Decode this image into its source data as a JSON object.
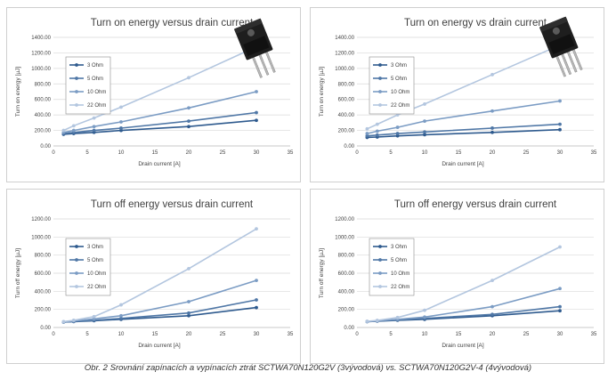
{
  "caption": "Obr. 2  Srovnání zapínacích a vypínacích ztrát SCTWA70N120G2V (3vývodová) vs. SCTWA70N120G2V-4 (4vývodová)",
  "colors": {
    "series": [
      "#2e5a8e",
      "#4f77a6",
      "#7b9cc4",
      "#b3c6df"
    ],
    "grid": "#d9d9d9",
    "frame": "#cfcfcf"
  },
  "icons": [
    "transistor-3pin-icon",
    "transistor-4pin-icon"
  ],
  "chart_data": [
    {
      "type": "line",
      "title": "Turn on energy versus drain current",
      "xlabel": "Drain current [A]",
      "ylabel": "Turn on energy [µJ]",
      "xlim": [
        0,
        35
      ],
      "ylim": [
        0,
        1400
      ],
      "x_ticks": [
        "0",
        "5",
        "10",
        "15",
        "20",
        "25",
        "30",
        "35"
      ],
      "y_ticks": [
        "0.00",
        "200.00",
        "400.00",
        "600.00",
        "800.00",
        "1000.00",
        "1200.00",
        "1400.00"
      ],
      "grid": "horizontal",
      "legend": "upper-left",
      "x": [
        1.5,
        3,
        6,
        10,
        20,
        30
      ],
      "series": [
        {
          "name": "3 Ohm",
          "values": [
            150,
            160,
            175,
            200,
            250,
            330
          ]
        },
        {
          "name": "5 Ohm",
          "values": [
            160,
            175,
            200,
            230,
            320,
            430
          ]
        },
        {
          "name": "10 Ohm",
          "values": [
            175,
            200,
            250,
            310,
            490,
            700
          ]
        },
        {
          "name": "22 Ohm",
          "values": [
            200,
            260,
            360,
            500,
            880,
            1280
          ]
        }
      ]
    },
    {
      "type": "line",
      "title": "Turn on energy vs drain current",
      "xlabel": "Drain current [A]",
      "ylabel": "Turn on energy [µJ]",
      "xlim": [
        0,
        35
      ],
      "ylim": [
        0,
        1400
      ],
      "x_ticks": [
        "0",
        "5",
        "10",
        "15",
        "20",
        "25",
        "30",
        "35"
      ],
      "y_ticks": [
        "0.00",
        "200.00",
        "400.00",
        "600.00",
        "800.00",
        "1000.00",
        "1200.00",
        "1400.00"
      ],
      "grid": "horizontal",
      "legend": "upper-left",
      "x": [
        1.5,
        3,
        6,
        10,
        20,
        30
      ],
      "series": [
        {
          "name": "3 Ohm",
          "values": [
            110,
            115,
            130,
            145,
            175,
            210
          ]
        },
        {
          "name": "5 Ohm",
          "values": [
            130,
            140,
            160,
            180,
            230,
            280
          ]
        },
        {
          "name": "10 Ohm",
          "values": [
            160,
            190,
            240,
            320,
            450,
            580
          ]
        },
        {
          "name": "22 Ohm",
          "values": [
            220,
            280,
            400,
            540,
            920,
            1300
          ]
        }
      ]
    },
    {
      "type": "line",
      "title": "Turn off energy versus drain current",
      "xlabel": "Drain current [A]",
      "ylabel": "Turn off energy [µJ]",
      "xlim": [
        0,
        35
      ],
      "ylim": [
        0,
        1200
      ],
      "x_ticks": [
        "0",
        "5",
        "10",
        "15",
        "20",
        "25",
        "30",
        "35"
      ],
      "y_ticks": [
        "0.00",
        "200.00",
        "400.00",
        "600.00",
        "800.00",
        "1000.00",
        "1200.00"
      ],
      "grid": "horizontal",
      "legend": "upper-left",
      "x": [
        1.5,
        3,
        6,
        10,
        20,
        30
      ],
      "series": [
        {
          "name": "3 Ohm",
          "values": [
            60,
            65,
            75,
            90,
            130,
            220
          ]
        },
        {
          "name": "5 Ohm",
          "values": [
            60,
            68,
            80,
            100,
            160,
            305
          ]
        },
        {
          "name": "10 Ohm",
          "values": [
            62,
            72,
            95,
            130,
            285,
            520
          ]
        },
        {
          "name": "22 Ohm",
          "values": [
            65,
            80,
            120,
            250,
            650,
            1090
          ]
        }
      ]
    },
    {
      "type": "line",
      "title": "Turn off energy versus drain current",
      "xlabel": "Drain current [A]",
      "ylabel": "Turn off energy [µJ]",
      "xlim": [
        0,
        35
      ],
      "ylim": [
        0,
        1200
      ],
      "x_ticks": [
        "0",
        "5",
        "10",
        "15",
        "20",
        "25",
        "30",
        "35"
      ],
      "y_ticks": [
        "0.00",
        "200.00",
        "400.00",
        "600.00",
        "800.00",
        "1000.00",
        "1200.00"
      ],
      "grid": "horizontal",
      "legend": "upper-left",
      "x": [
        1.5,
        3,
        6,
        10,
        20,
        30
      ],
      "series": [
        {
          "name": "3 Ohm",
          "values": [
            65,
            70,
            80,
            90,
            130,
            185
          ]
        },
        {
          "name": "5 Ohm",
          "values": [
            65,
            72,
            85,
            100,
            145,
            230
          ]
        },
        {
          "name": "10 Ohm",
          "values": [
            66,
            74,
            90,
            115,
            230,
            430
          ]
        },
        {
          "name": "22 Ohm",
          "values": [
            68,
            78,
            110,
            190,
            520,
            890
          ]
        }
      ]
    }
  ]
}
